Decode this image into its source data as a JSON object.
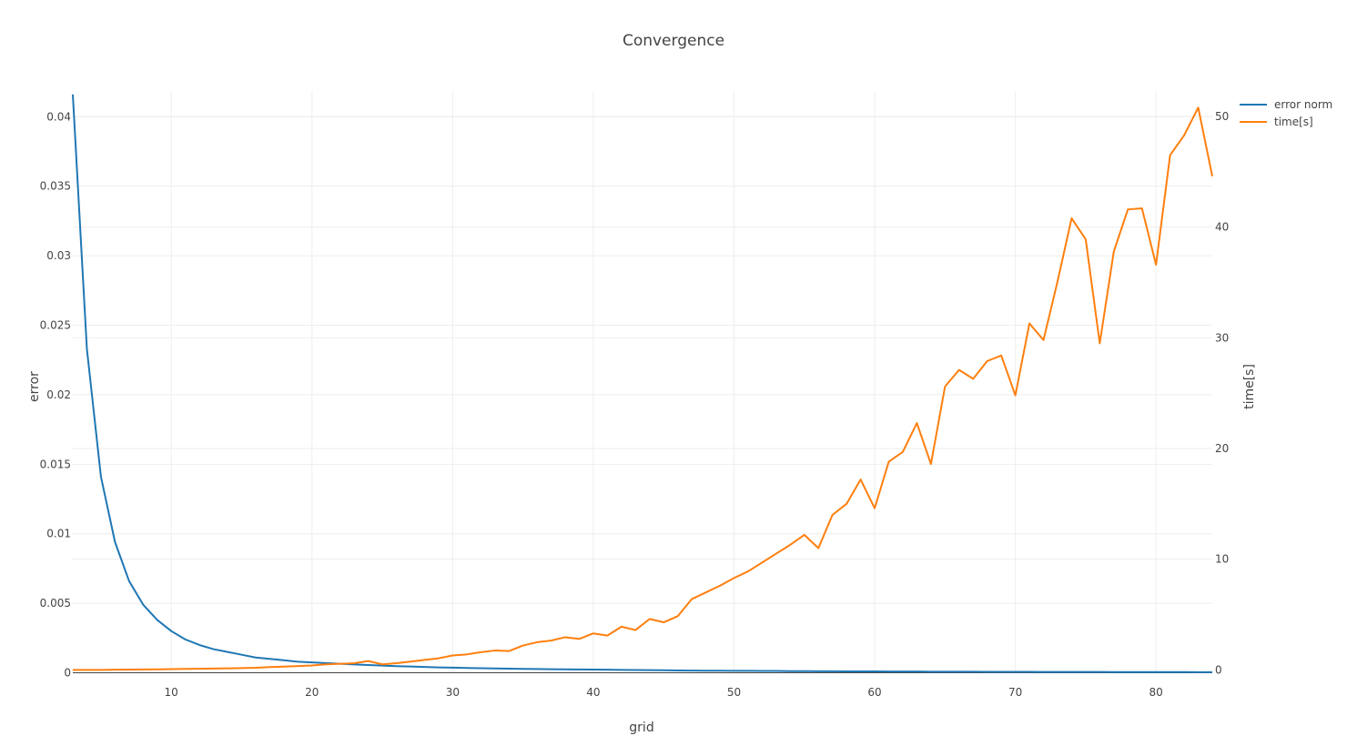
{
  "chart_data": {
    "type": "line",
    "title": "Convergence",
    "xlabel": "grid",
    "ylabel": "error",
    "y2label": "time[s]",
    "xlim": [
      3,
      84
    ],
    "ylim": [
      -3e-05,
      0.04185
    ],
    "y2lim": [
      -0.3,
      52.3
    ],
    "xticks": [
      10,
      20,
      30,
      40,
      50,
      60,
      70,
      80
    ],
    "yticks": [
      0,
      0.005,
      0.01,
      0.015,
      0.02,
      0.025,
      0.03,
      0.035,
      0.04
    ],
    "ytick_labels": [
      "0",
      "0.005",
      "0.01",
      "0.015",
      "0.02",
      "0.025",
      "0.03",
      "0.035",
      "0.04"
    ],
    "y2ticks": [
      0,
      10,
      20,
      30,
      40,
      50
    ],
    "y2tick_labels": [
      "0",
      "10",
      "20",
      "30",
      "40",
      "50"
    ],
    "grid": true,
    "legend_position": "top-right",
    "x": [
      3,
      4,
      5,
      6,
      7,
      8,
      9,
      10,
      11,
      12,
      13,
      14,
      15,
      16,
      17,
      18,
      19,
      20,
      21,
      22,
      23,
      24,
      25,
      26,
      27,
      28,
      29,
      30,
      31,
      32,
      33,
      34,
      35,
      36,
      37,
      38,
      39,
      40,
      41,
      42,
      43,
      44,
      45,
      46,
      47,
      48,
      49,
      50,
      51,
      52,
      53,
      54,
      55,
      56,
      57,
      58,
      59,
      60,
      61,
      62,
      63,
      64,
      65,
      66,
      67,
      68,
      69,
      70,
      71,
      72,
      73,
      74,
      75,
      76,
      77,
      78,
      79,
      80,
      81,
      82,
      83,
      84
    ],
    "series": [
      {
        "name": "error norm",
        "color": "#1f77b4",
        "axis": "left",
        "values": [
          0.0416,
          0.0233,
          0.0141,
          0.0094,
          0.0066,
          0.0049,
          0.0038,
          0.003,
          0.0024,
          0.002,
          0.0017,
          0.0015,
          0.0013,
          0.0011,
          0.001,
          0.0009,
          0.0008,
          0.00075,
          0.0007,
          0.00065,
          0.0006,
          0.00056,
          0.00052,
          0.00048,
          0.00045,
          0.00042,
          0.00039,
          0.00037,
          0.00035,
          0.00033,
          0.00031,
          0.0003,
          0.00028,
          0.00027,
          0.00026,
          0.00025,
          0.00024,
          0.00023,
          0.00022,
          0.00021,
          0.0002,
          0.00019,
          0.00018,
          0.00017,
          0.00016,
          0.00015,
          0.00015,
          0.00014,
          0.00014,
          0.00013,
          0.00013,
          0.00012,
          0.00012,
          0.00011,
          0.00011,
          0.0001,
          0.0001,
          0.0001,
          9e-05,
          9e-05,
          9e-05,
          8e-05,
          8e-05,
          8e-05,
          8e-05,
          7e-05,
          7e-05,
          7e-05,
          7e-05,
          6e-05,
          6e-05,
          6e-05,
          6e-05,
          6e-05,
          5e-05,
          5e-05,
          5e-05,
          5e-05,
          5e-05,
          5e-05,
          4e-05,
          4e-05
        ]
      },
      {
        "name": "time[s]",
        "color": "#ff7f0e",
        "axis": "right",
        "values": [
          0,
          0,
          0,
          0.02,
          0.03,
          0.04,
          0.05,
          0.07,
          0.09,
          0.1,
          0.12,
          0.14,
          0.16,
          0.19,
          0.25,
          0.3,
          0.35,
          0.4,
          0.5,
          0.55,
          0.6,
          0.8,
          0.5,
          0.6,
          0.75,
          0.9,
          1.05,
          1.3,
          1.4,
          1.6,
          1.75,
          1.7,
          2.2,
          2.5,
          2.65,
          2.95,
          2.8,
          3.3,
          3.1,
          3.9,
          3.6,
          4.6,
          4.3,
          4.85,
          6.4,
          7.0,
          7.6,
          8.3,
          8.9,
          9.7,
          10.5,
          11.3,
          12.2,
          11.0,
          14.0,
          15.0,
          17.2,
          14.6,
          18.8,
          19.7,
          22.3,
          18.6,
          25.6,
          27.1,
          26.3,
          27.9,
          28.4,
          24.8,
          31.3,
          29.8,
          35.1,
          40.8,
          38.9,
          29.5,
          37.8,
          41.6,
          41.7,
          36.6,
          46.5,
          48.3,
          50.8,
          44.6
        ]
      }
    ]
  }
}
